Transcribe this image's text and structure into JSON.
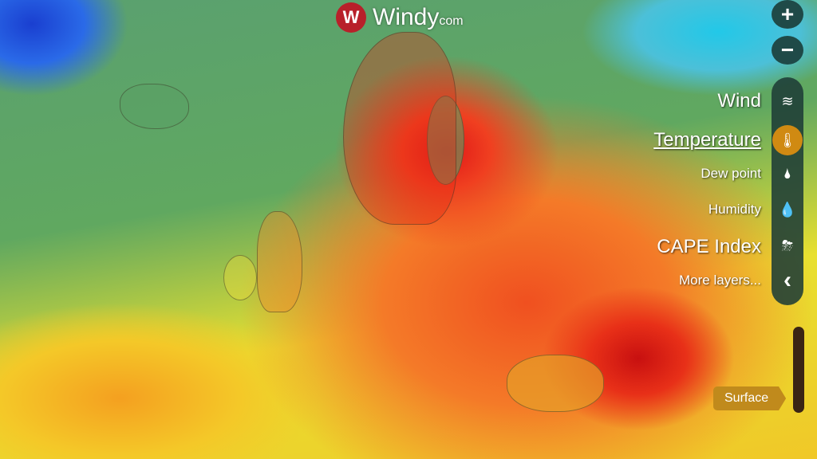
{
  "logo": {
    "name": "Windy",
    "suffix": "com",
    "icon": "windy-logo-icon"
  },
  "zoom": {
    "in": "+",
    "out": "−"
  },
  "layers": [
    {
      "label": "Wind",
      "icon": "wind-icon",
      "glyph": "≋",
      "active": false
    },
    {
      "label": "Temperature",
      "icon": "thermometer-icon",
      "glyph": "🌡",
      "active": true
    },
    {
      "label": "Dew point",
      "icon": "dew-point-icon",
      "glyph": "🌢",
      "active": false
    },
    {
      "label": "Humidity",
      "icon": "humidity-icon",
      "glyph": "💧",
      "active": false
    },
    {
      "label": "CAPE Index",
      "icon": "storm-icon",
      "glyph": "⛈",
      "active": false
    },
    {
      "label": "More layers...",
      "icon": "chevron-left-icon",
      "glyph": "‹",
      "active": false
    }
  ],
  "altitude": {
    "label": "Surface"
  },
  "colors": {
    "accent": "#d08a12",
    "rail": "#1f4a48",
    "logo": "#b8202a"
  }
}
